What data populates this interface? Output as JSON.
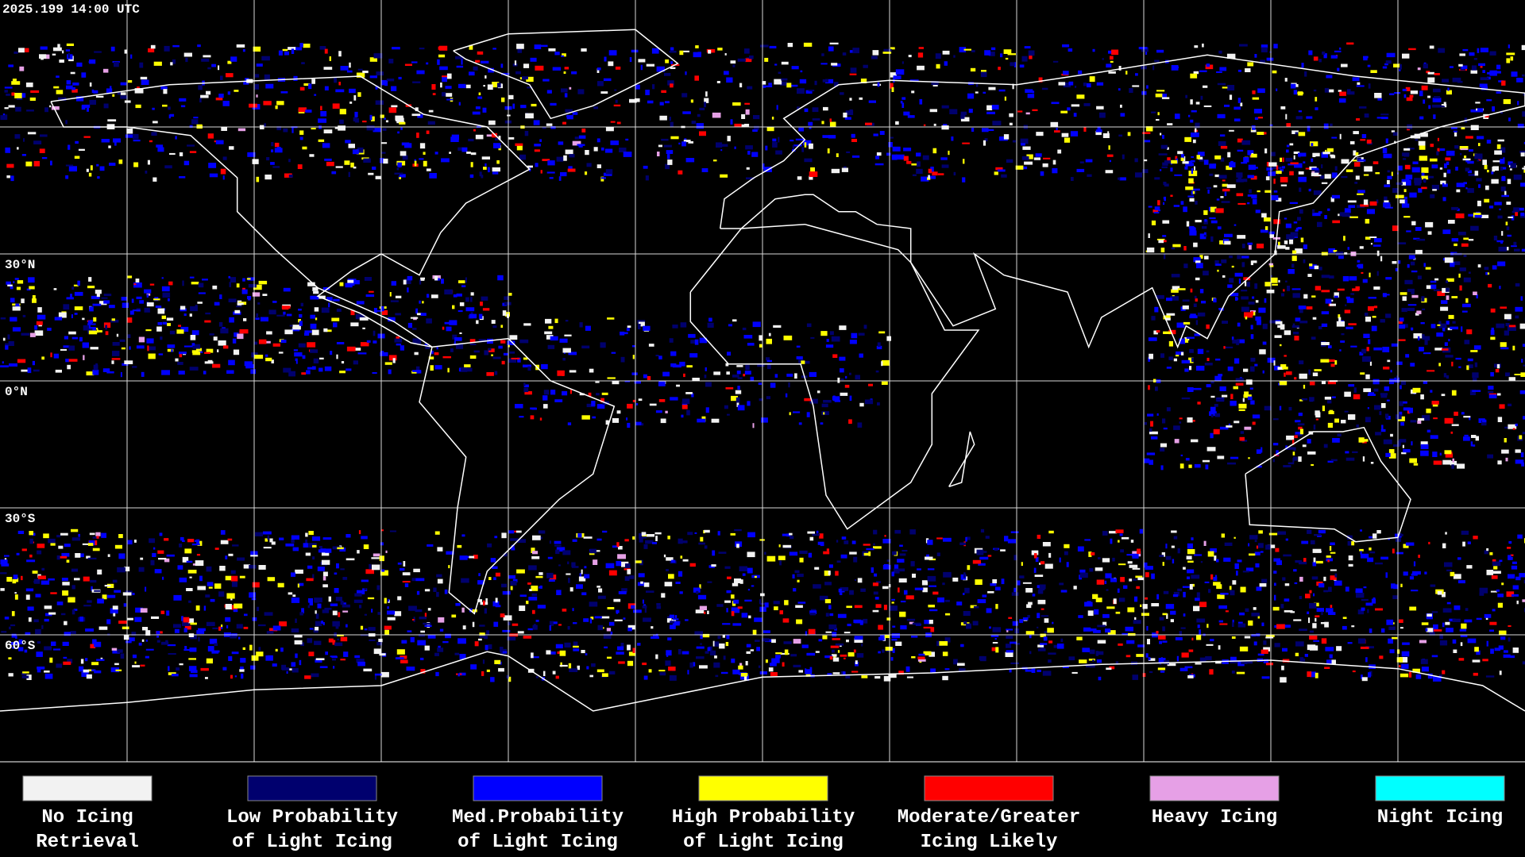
{
  "header": {
    "timestamp": "2025.199 14:00 UTC"
  },
  "latitude_labels": [
    "30°N",
    "0°N",
    "30°S",
    "60°S"
  ],
  "legend": {
    "items": [
      {
        "color": "#f2f2f2",
        "label": [
          "No Icing",
          "Retrieval"
        ]
      },
      {
        "color": "#00006e",
        "label": [
          "Low Probability",
          "of Light Icing"
        ]
      },
      {
        "color": "#0000ff",
        "label": [
          "Med.Probability",
          "of Light Icing"
        ]
      },
      {
        "color": "#ffff00",
        "label": [
          "High Probability",
          "of Light Icing"
        ]
      },
      {
        "color": "#ff0000",
        "label": [
          "Moderate/Greater",
          "Icing Likely"
        ]
      },
      {
        "color": "#e6a0e6",
        "label": [
          "Heavy Icing",
          ""
        ]
      },
      {
        "color": "#00ffff",
        "label": [
          "Night Icing",
          ""
        ]
      }
    ]
  }
}
